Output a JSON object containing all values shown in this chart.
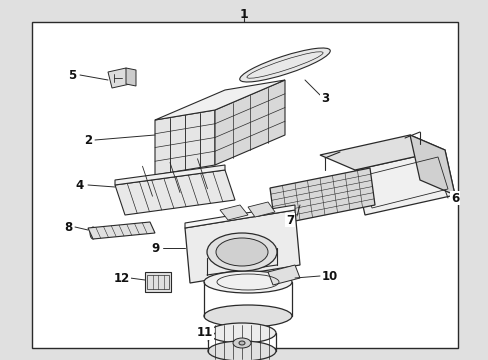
{
  "bg_color": "#e0e0e0",
  "box_color": "#ffffff",
  "line_color": "#2a2a2a",
  "text_color": "#111111",
  "figsize": [
    4.89,
    3.6
  ],
  "dpi": 100,
  "border": [
    32,
    22,
    458,
    348
  ]
}
